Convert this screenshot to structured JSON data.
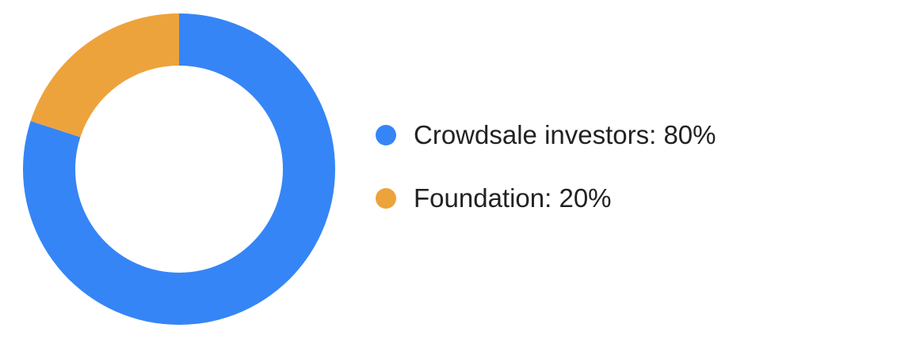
{
  "chart_data": {
    "type": "pie",
    "donut": true,
    "categories": [
      "Crowdsale investors",
      "Foundation"
    ],
    "values": [
      80,
      20
    ],
    "unit": "%",
    "colors": [
      "#3685f6",
      "#eda33c"
    ],
    "legend_position": "right",
    "title": "",
    "legend": [
      {
        "label": "Crowdsale investors: 80%",
        "color": "#3685f6"
      },
      {
        "label": "Foundation: 20%",
        "color": "#eda33c"
      }
    ]
  }
}
